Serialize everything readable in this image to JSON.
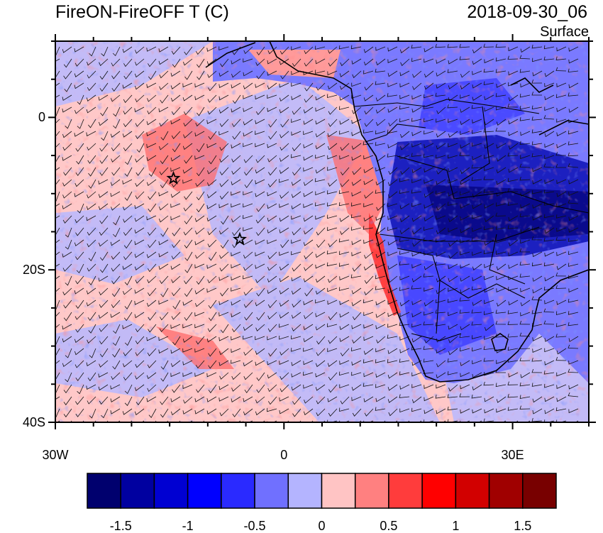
{
  "header": {
    "title": "FireON-FireOFF T (C)",
    "datetime": "2018-09-30_06",
    "level": "Surface"
  },
  "map": {
    "projection": "cylindrical equidistant",
    "lon_range": [
      -30,
      40
    ],
    "lat_range": [
      -40,
      10
    ],
    "lat_ticks": [
      {
        "value": 0,
        "label": "0"
      },
      {
        "value": -20,
        "label": "20S"
      },
      {
        "value": -40,
        "label": "40S"
      }
    ],
    "lon_ticks": [
      {
        "value": -30,
        "label": "30W"
      },
      {
        "value": 0,
        "label": "0"
      },
      {
        "value": 30,
        "label": "30E"
      }
    ],
    "colors": {
      "land_cool": "#1e28b4",
      "ocean_neutral_warm": "#ffc4c4",
      "ocean_neutral_cool": "#b4b4ff",
      "coast_warm": "#ff3c3c"
    },
    "markers": [
      {
        "name": "star-marker",
        "lon": -14.5,
        "lat": -8
      },
      {
        "name": "star-marker",
        "lon": -5.8,
        "lat": -16
      }
    ]
  },
  "colorbar": {
    "labels": [
      {
        "text": "-1.5",
        "index": 1
      },
      {
        "text": "-1",
        "index": 3
      },
      {
        "text": "-0.5",
        "index": 5
      },
      {
        "text": "0",
        "index": 7
      },
      {
        "text": "0.5",
        "index": 9
      },
      {
        "text": "1",
        "index": 11
      },
      {
        "text": "1.5",
        "index": 13
      }
    ],
    "colors": [
      "#00006e",
      "#0000a0",
      "#0000d2",
      "#0000ff",
      "#2a2aff",
      "#7070ff",
      "#b4b4ff",
      "#ffc4c4",
      "#ff8080",
      "#ff3c3c",
      "#ff0000",
      "#d20000",
      "#a00000",
      "#780000"
    ]
  }
}
